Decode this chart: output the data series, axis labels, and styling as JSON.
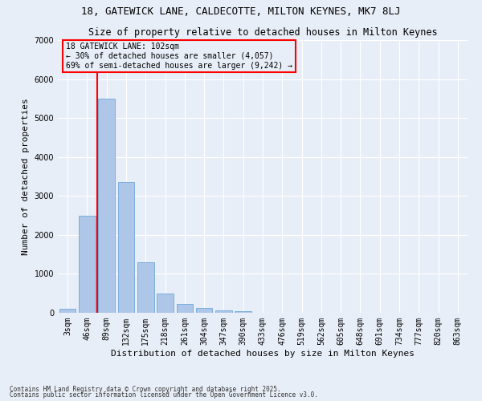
{
  "title1": "18, GATEWICK LANE, CALDECOTTE, MILTON KEYNES, MK7 8LJ",
  "title2": "Size of property relative to detached houses in Milton Keynes",
  "xlabel": "Distribution of detached houses by size in Milton Keynes",
  "ylabel": "Number of detached properties",
  "categories": [
    "3sqm",
    "46sqm",
    "89sqm",
    "132sqm",
    "175sqm",
    "218sqm",
    "261sqm",
    "304sqm",
    "347sqm",
    "390sqm",
    "433sqm",
    "476sqm",
    "519sqm",
    "562sqm",
    "605sqm",
    "648sqm",
    "691sqm",
    "734sqm",
    "777sqm",
    "820sqm",
    "863sqm"
  ],
  "values": [
    100,
    2500,
    5500,
    3350,
    1300,
    490,
    230,
    115,
    65,
    35,
    10,
    0,
    0,
    0,
    0,
    0,
    0,
    0,
    0,
    0,
    0
  ],
  "bar_color": "#aec6e8",
  "bar_edge_color": "#5a9fd4",
  "vline_x": 1.5,
  "vline_color": "red",
  "annotation_title": "18 GATEWICK LANE: 102sqm",
  "annotation_line1": "← 30% of detached houses are smaller (4,057)",
  "annotation_line2": "69% of semi-detached houses are larger (9,242) →",
  "annotation_box_color": "red",
  "background_color": "#e8eef7",
  "ylim": [
    0,
    7000
  ],
  "yticks": [
    0,
    1000,
    2000,
    3000,
    4000,
    5000,
    6000,
    7000
  ],
  "footnote1": "Contains HM Land Registry data © Crown copyright and database right 2025.",
  "footnote2": "Contains public sector information licensed under the Open Government Licence v3.0.",
  "title1_fontsize": 9,
  "title2_fontsize": 8.5,
  "xlabel_fontsize": 8,
  "ylabel_fontsize": 8,
  "tick_fontsize": 7,
  "footnote_fontsize": 5.5
}
